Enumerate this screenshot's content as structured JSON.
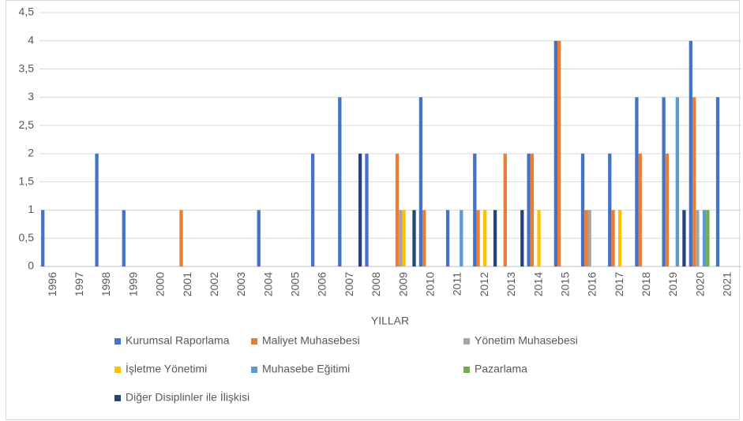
{
  "chart_data": {
    "type": "bar",
    "x_label": "YILLAR",
    "categories": [
      "1996",
      "1997",
      "1998",
      "1999",
      "2000",
      "2001",
      "2002",
      "2003",
      "2004",
      "2005",
      "2006",
      "2007",
      "2008",
      "2009",
      "2010",
      "2011",
      "2012",
      "2013",
      "2014",
      "2015",
      "2016",
      "2017",
      "2018",
      "2019",
      "2020",
      "2021"
    ],
    "series": [
      {
        "name": "Kurumsal Raporlama",
        "color": "#4472c4",
        "values": [
          1,
          0,
          2,
          1,
          0,
          0,
          0,
          0,
          1,
          0,
          2,
          3,
          2,
          0,
          3,
          1,
          2,
          0,
          2,
          4,
          2,
          2,
          3,
          3,
          4,
          3
        ]
      },
      {
        "name": "Maliyet Muhasebesi",
        "color": "#ed7d31",
        "values": [
          0,
          0,
          0,
          0,
          0,
          1,
          0,
          0,
          0,
          0,
          0,
          0,
          0,
          2,
          1,
          0,
          1,
          2,
          2,
          4,
          1,
          1,
          2,
          2,
          3,
          0
        ]
      },
      {
        "name": "Yönetim Muhasebesi",
        "color": "#a5a5a5",
        "values": [
          0,
          0,
          0,
          0,
          0,
          0,
          0,
          0,
          0,
          0,
          0,
          0,
          0,
          1,
          0,
          0,
          0,
          0,
          0,
          0,
          1,
          0,
          0,
          0,
          1,
          0
        ]
      },
      {
        "name": "İşletme Yönetimi",
        "color": "#ffc000",
        "values": [
          0,
          0,
          0,
          0,
          0,
          0,
          0,
          0,
          0,
          0,
          0,
          0,
          0,
          1,
          0,
          0,
          1,
          0,
          1,
          0,
          0,
          1,
          0,
          0,
          0,
          0
        ]
      },
      {
        "name": "Muhasebe Eğitimi",
        "color": "#5b9bd5",
        "values": [
          0,
          0,
          0,
          0,
          0,
          0,
          0,
          0,
          0,
          0,
          0,
          0,
          0,
          0,
          0,
          1,
          0,
          0,
          0,
          0,
          0,
          0,
          0,
          3,
          1,
          0
        ]
      },
      {
        "name": "Pazarlama",
        "color": "#70ad47",
        "values": [
          0,
          0,
          0,
          0,
          0,
          0,
          0,
          0,
          0,
          0,
          0,
          0,
          0,
          0,
          0,
          0,
          0,
          0,
          0,
          0,
          0,
          0,
          0,
          0,
          1,
          0
        ]
      },
      {
        "name": "Diğer Disiplinler ile İlişkisi",
        "color": "#264478",
        "values": [
          0,
          0,
          0,
          0,
          0,
          0,
          0,
          0,
          0,
          0,
          0,
          2,
          0,
          1,
          0,
          0,
          1,
          1,
          0,
          0,
          0,
          0,
          0,
          1,
          0,
          0
        ]
      }
    ],
    "ylim": [
      0,
      4.5
    ],
    "yticks": [
      0,
      {
        "value": 0.5,
        "label": "0,5"
      },
      1,
      {
        "value": 1.5,
        "label": "1,5"
      },
      2,
      {
        "value": 2.5,
        "label": "2,5"
      },
      3,
      {
        "value": 3.5,
        "label": "3,5"
      },
      4,
      {
        "value": 4.5,
        "label": "4,5"
      }
    ],
    "grid": true
  }
}
